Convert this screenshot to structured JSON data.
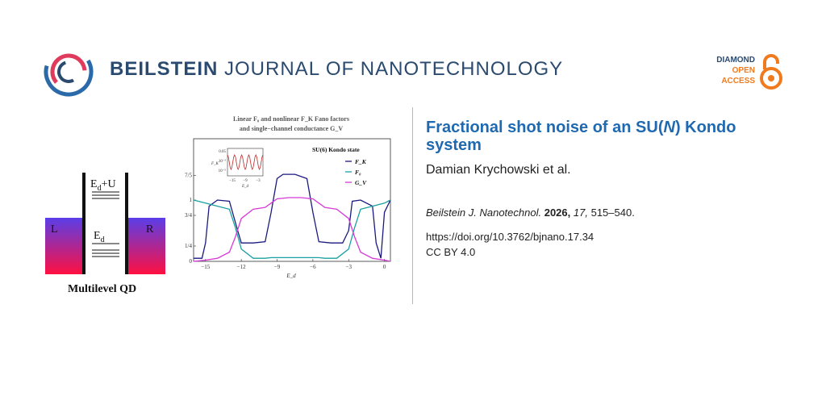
{
  "header": {
    "journal_word1": "BEILSTEIN",
    "journal_word2": "JOURNAL OF NANOTECHNOLOGY",
    "brand_colors": [
      "#e03a5c",
      "#2b6aa8",
      "#2b4a6f"
    ]
  },
  "open_access": {
    "line1": "DIAMOND",
    "line2": "OPEN",
    "line3": "ACCESS",
    "line1_color": "#2b4a6f",
    "accent_color": "#f07b1e"
  },
  "article": {
    "title_part1": "Fractional shot noise of an SU(",
    "title_italic": "N",
    "title_part2": ") Kondo system",
    "authors": "Damian Krychowski et al.",
    "citation_journal": "Beilstein J. Nanotechnol.",
    "citation_year": "2026,",
    "citation_volume": "17,",
    "citation_pages": "515–540.",
    "doi": "https://doi.org/10.3762/bjnano.17.34",
    "license": "CC BY 4.0"
  },
  "qd_diagram": {
    "label_left": "L",
    "label_right": "R",
    "level_upper": "Eₐ+U",
    "level_upper_main": "E",
    "level_upper_sub": "d",
    "level_upper_suffix": "+U",
    "level_lower_main": "E",
    "level_lower_sub": "d",
    "caption": "Multilevel QD"
  },
  "chart_data": {
    "type": "line",
    "title_line1": "Linear F₀ and nonlinear F_K Fano factors",
    "title_line2": "and single−channel conductance G_V",
    "xlabel": "E_d",
    "xlim": [
      -16,
      0.5
    ],
    "ylim": [
      0,
      2.0
    ],
    "x_ticks": [
      "−15",
      "−12",
      "−9",
      "−6",
      "−3",
      "0"
    ],
    "x_tick_values": [
      -15,
      -12,
      -9,
      -6,
      -3,
      0
    ],
    "y_ticks": [
      "0",
      "1/4",
      "3/4",
      "1",
      "7/5"
    ],
    "y_tick_values": [
      0,
      0.25,
      0.75,
      1,
      1.4
    ],
    "legend_title": "SU(6) Kondo state",
    "legend": [
      {
        "name": "F_K",
        "color": "#1a1a80"
      },
      {
        "name": "F₀",
        "color": "#19a0a0"
      },
      {
        "name": "G_V",
        "color": "#d63bd6"
      }
    ],
    "inset": {
      "ylabel": "F_K",
      "y_ticks": [
        "0.05",
        "10⁻³",
        "10⁻⁵"
      ],
      "x_ticks": [
        "−15",
        "−9",
        "−3"
      ],
      "xlabel": "E_d",
      "color": "#c02a2a"
    },
    "series": [
      {
        "name": "F_K",
        "x": [
          -16,
          -15.3,
          -15,
          -14.7,
          -14,
          -13,
          -12.3,
          -12,
          -11,
          -10,
          -9.5,
          -9,
          -8.5,
          -7.5,
          -6.5,
          -6,
          -5.5,
          -4.5,
          -3.5,
          -3,
          -2.7,
          -2,
          -1,
          -0.7,
          -0.3,
          0,
          0.5
        ],
        "y": [
          0.05,
          0.05,
          0.3,
          0.9,
          1.0,
          0.98,
          0.5,
          0.3,
          0.3,
          0.32,
          0.8,
          1.35,
          1.42,
          1.42,
          1.35,
          0.8,
          0.32,
          0.3,
          0.3,
          0.5,
          0.98,
          1.0,
          0.9,
          0.3,
          0.05,
          0.8,
          1.0
        ]
      },
      {
        "name": "F₀",
        "x": [
          -16,
          -15,
          -14,
          -13,
          -12.5,
          -12,
          -11,
          -10,
          -9.5,
          -9,
          -8,
          -7,
          -6,
          -5.5,
          -5,
          -4,
          -3,
          -2.5,
          -2,
          -1,
          0,
          0.5
        ],
        "y": [
          1.0,
          0.95,
          0.9,
          0.85,
          0.55,
          0.2,
          0.05,
          0.05,
          0.06,
          0.06,
          0.06,
          0.06,
          0.06,
          0.06,
          0.05,
          0.05,
          0.2,
          0.55,
          0.85,
          0.9,
          0.95,
          1.0
        ]
      },
      {
        "name": "G_V",
        "x": [
          -16,
          -15,
          -14,
          -13,
          -12.5,
          -12,
          -11,
          -10,
          -9.5,
          -9,
          -8,
          -7,
          -6,
          -5.5,
          -5,
          -4,
          -3,
          -2.5,
          -2,
          -1,
          0,
          0.5
        ],
        "y": [
          0.0,
          0.02,
          0.05,
          0.15,
          0.4,
          0.7,
          0.85,
          0.88,
          0.95,
          1.02,
          1.04,
          1.04,
          1.02,
          0.95,
          0.88,
          0.85,
          0.7,
          0.4,
          0.15,
          0.05,
          0.02,
          0.0
        ]
      }
    ]
  }
}
